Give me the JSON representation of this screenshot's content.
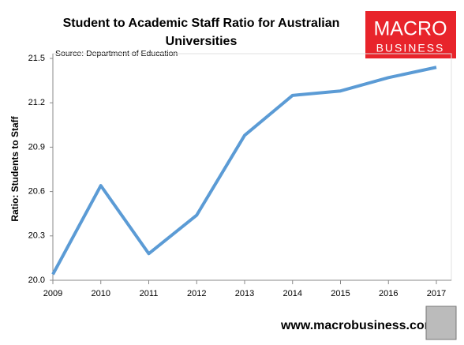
{
  "chart_data": {
    "type": "line",
    "title": "Student to Academic Staff Ratio for Australian Universities",
    "subtitle": "Source: Department of Education",
    "y_label": "Ratio: Students to Staff",
    "categories": [
      "2009",
      "2010",
      "2011",
      "2012",
      "2013",
      "2014",
      "2015",
      "2016",
      "2017"
    ],
    "values": [
      20.04,
      20.64,
      20.18,
      20.44,
      20.98,
      21.25,
      21.28,
      21.37,
      21.44
    ],
    "color": "#5b9bd5",
    "ylim": [
      20,
      21.5
    ],
    "yticks": [
      {
        "value": 20,
        "label": "20.0"
      },
      20.3,
      20.6,
      20.9,
      21.2,
      21.5
    ],
    "grid": false
  },
  "logo": {
    "line1": "MACRO",
    "line2": "BUSINESS"
  },
  "footer": "www.macrobusiness.com.au"
}
